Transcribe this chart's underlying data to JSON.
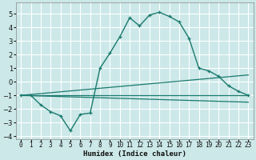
{
  "xlabel": "Humidex (Indice chaleur)",
  "background_color": "#cce8e8",
  "grid_color": "#ffffff",
  "line_color": "#1a7a6e",
  "xlim": [
    -0.5,
    23.5
  ],
  "ylim": [
    -4.2,
    5.8
  ],
  "yticks": [
    -4,
    -3,
    -2,
    -1,
    0,
    1,
    2,
    3,
    4,
    5
  ],
  "xticks": [
    0,
    1,
    2,
    3,
    4,
    5,
    6,
    7,
    8,
    9,
    10,
    11,
    12,
    13,
    14,
    15,
    16,
    17,
    18,
    19,
    20,
    21,
    22,
    23
  ],
  "series_main": {
    "x": [
      0,
      1,
      2,
      3,
      4,
      5,
      6,
      7,
      8,
      9,
      10,
      11,
      12,
      13,
      14,
      15,
      16,
      17,
      18,
      19,
      20,
      21,
      22,
      23
    ],
    "y": [
      -1.0,
      -1.0,
      -1.7,
      -2.2,
      -2.5,
      -3.6,
      -2.4,
      -2.3,
      1.0,
      2.1,
      3.3,
      4.7,
      4.1,
      4.9,
      5.1,
      4.8,
      4.4,
      3.2,
      1.0,
      0.8,
      0.4,
      -0.3,
      -0.7,
      -1.0
    ]
  },
  "series_flat": [
    {
      "x": [
        0,
        23
      ],
      "y": [
        -1.0,
        -1.0
      ]
    },
    {
      "x": [
        0,
        23
      ],
      "y": [
        -1.0,
        0.5
      ]
    },
    {
      "x": [
        0,
        23
      ],
      "y": [
        -1.0,
        -1.5
      ]
    }
  ],
  "xlabel_fontsize": 6.5,
  "ytick_fontsize": 6,
  "xtick_fontsize": 5.5
}
